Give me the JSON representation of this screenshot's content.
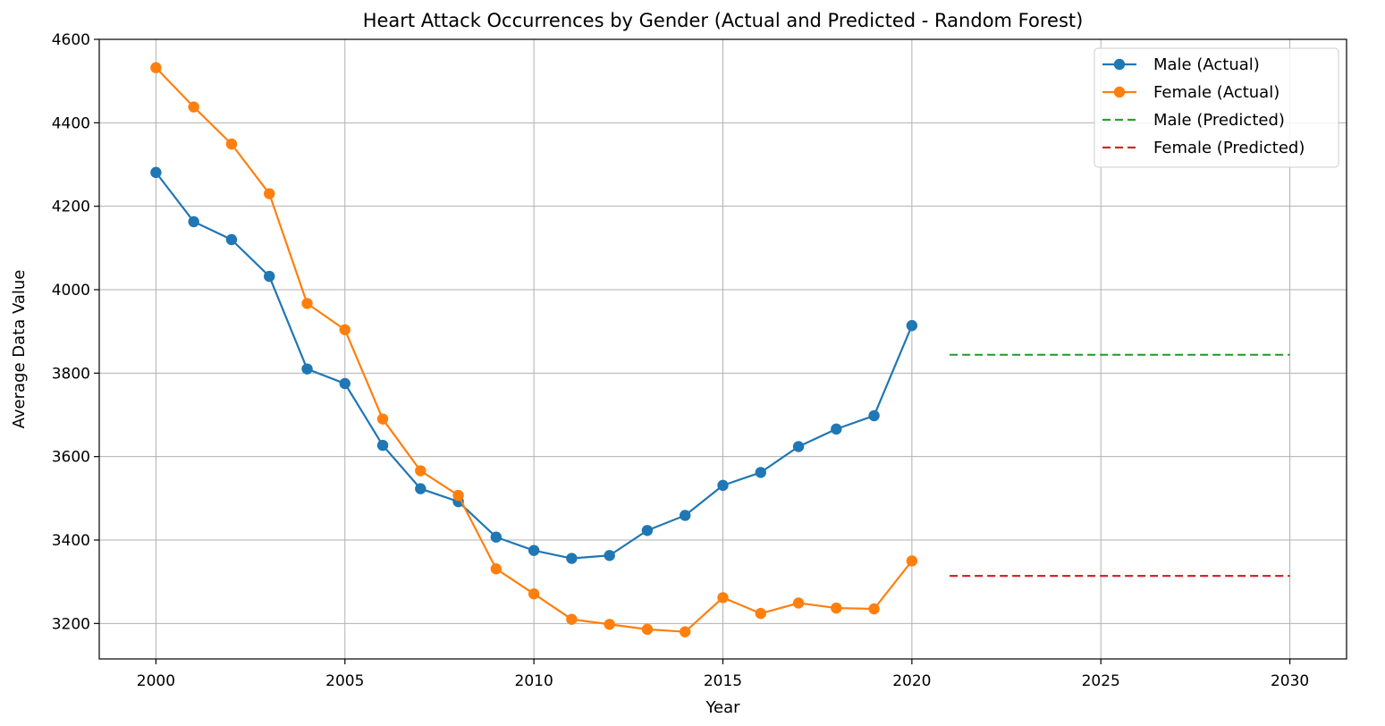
{
  "chart_data": {
    "type": "line",
    "title": "Heart Attack Occurrences by Gender (Actual and Predicted - Random Forest)",
    "xlabel": "Year",
    "ylabel": "Average Data Value",
    "xlim": [
      1998.5,
      2031.5
    ],
    "ylim": [
      3115,
      4600
    ],
    "xticks": [
      2000,
      2005,
      2010,
      2015,
      2020,
      2025,
      2030
    ],
    "yticks": [
      3200,
      3400,
      3600,
      3800,
      4000,
      4200,
      4400,
      4600
    ],
    "grid": true,
    "legend_position": "top-right",
    "series": [
      {
        "name": "Male (Actual)",
        "color": "#1f77b4",
        "style": "solid",
        "marker": "circle",
        "x": [
          2000,
          2001,
          2002,
          2003,
          2004,
          2005,
          2006,
          2007,
          2008,
          2009,
          2010,
          2011,
          2012,
          2013,
          2014,
          2015,
          2016,
          2017,
          2018,
          2019,
          2020
        ],
        "y": [
          4281,
          4163,
          4120,
          4032,
          3810,
          3775,
          3627,
          3523,
          3492,
          3407,
          3375,
          3356,
          3363,
          3423,
          3459,
          3531,
          3562,
          3624,
          3666,
          3698,
          3914
        ]
      },
      {
        "name": "Female (Actual)",
        "color": "#ff7f0e",
        "style": "solid",
        "marker": "circle",
        "x": [
          2000,
          2001,
          2002,
          2003,
          2004,
          2005,
          2006,
          2007,
          2008,
          2009,
          2010,
          2011,
          2012,
          2013,
          2014,
          2015,
          2016,
          2017,
          2018,
          2019,
          2020
        ],
        "y": [
          4532,
          4438,
          4349,
          4230,
          3967,
          3904,
          3690,
          3566,
          3507,
          3331,
          3271,
          3210,
          3198,
          3186,
          3180,
          3262,
          3224,
          3249,
          3237,
          3235,
          3350
        ]
      },
      {
        "name": "Male (Predicted)",
        "color": "#2ca02c",
        "style": "dashed",
        "marker": "none",
        "x": [
          2021,
          2030
        ],
        "y": [
          3844,
          3844
        ]
      },
      {
        "name": "Female (Predicted)",
        "color": "#d62728",
        "style": "dashed",
        "marker": "none",
        "x": [
          2021,
          2030
        ],
        "y": [
          3314,
          3314
        ]
      }
    ]
  }
}
